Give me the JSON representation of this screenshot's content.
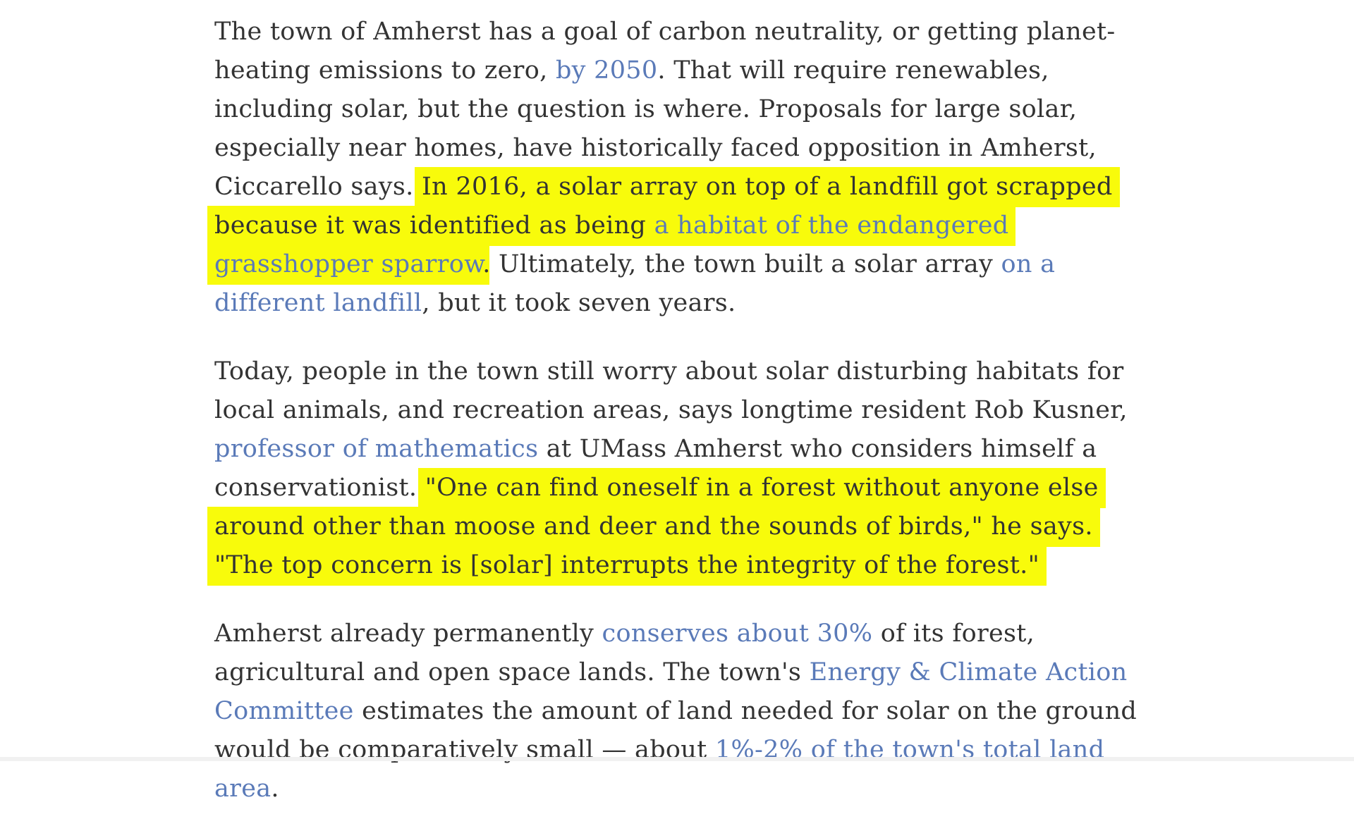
{
  "article": {
    "p1": {
      "t1": "The town of Amherst has a goal of carbon neutrality, or getting planet-heating emissions to zero, ",
      "link1": "by 2050",
      "t2": ". That will require renewables, including solar, but the question is where. Proposals for large solar, especially near homes, have historically faced opposition in Amherst, Ciccarello says. ",
      "hl_text": "In 2016, a solar array on top of a landfill got scrapped because it was identified as being ",
      "hl_link": "a habitat of the endangered grasshopper sparrow",
      "t3": ". Ultimately, the town built a solar array ",
      "link2": "on a different landfill",
      "t4": ", but it took seven years."
    },
    "p2": {
      "t1": "Today, people in the town still worry about solar disturbing habitats for local animals, and recreation areas, says longtime resident Rob Kusner, ",
      "link1": "professor of mathematics",
      "t2": " at UMass Amherst who considers himself a conservationist. ",
      "hl_text": "\"One can find oneself in a forest without anyone else around other than moose and deer and the sounds of birds,\" he says. \"The top concern is [solar] interrupts the integrity of the forest.\""
    },
    "p3": {
      "t1": "Amherst already permanently ",
      "link1": "conserves about 30%",
      "t2": " of its forest, agricultural and open space lands. The town's ",
      "link2": "Energy & Climate Action Committee",
      "t3": " estimates the amount of land needed for solar on the ground would be comparatively small — about ",
      "link3": "1%-2% of the town's total land area",
      "t4": "."
    }
  },
  "colors": {
    "text": "#333333",
    "link": "#5a7ab8",
    "highlight": "#f8fb0b"
  }
}
